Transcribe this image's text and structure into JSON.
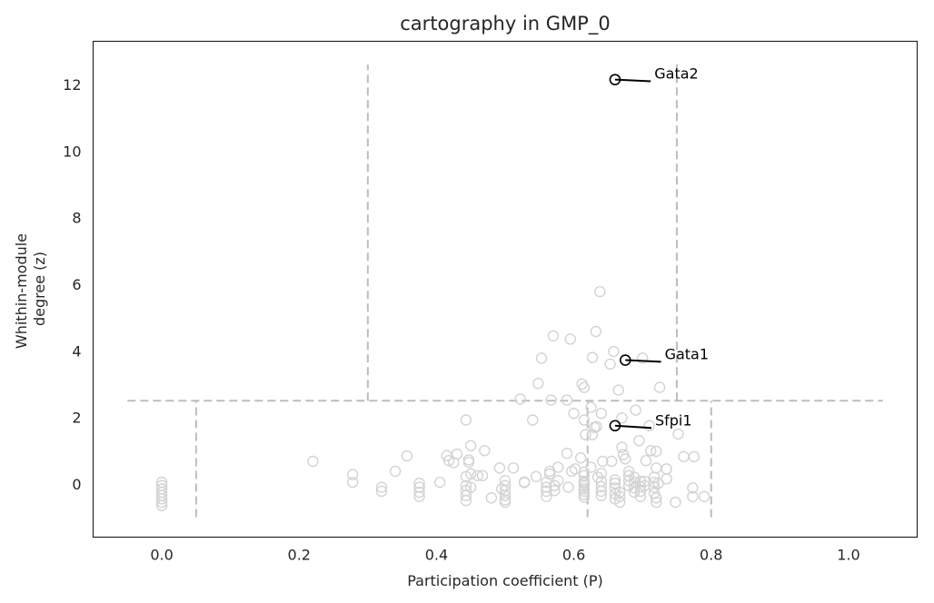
{
  "chart_data": {
    "type": "scatter",
    "title": "cartography in GMP_0",
    "xlabel": "Participation coefficient (P)",
    "ylabel": [
      "Whithin-module",
      "degree (z)"
    ],
    "xlim": [
      -0.1,
      1.1
    ],
    "ylim": [
      -1.6,
      13.3
    ],
    "xticks": [
      0.0,
      0.2,
      0.4,
      0.6,
      0.8,
      1.0
    ],
    "xtick_labels": [
      "0.0",
      "0.2",
      "0.4",
      "0.6",
      "0.8",
      "1.0"
    ],
    "yticks": [
      0,
      2,
      4,
      6,
      8,
      10,
      12
    ],
    "ytick_labels": [
      "0",
      "2",
      "4",
      "6",
      "8",
      "10",
      "12"
    ],
    "grid": false,
    "point_color": "#d3d3d3",
    "highlight_color": "#000000",
    "guide_color": "#bdbdbd",
    "guides": [
      {
        "x": [
          -0.05,
          1.05
        ],
        "y": [
          2.5,
          2.5
        ]
      },
      {
        "x": [
          0.05,
          0.05
        ],
        "y": [
          -1.0,
          2.5
        ]
      },
      {
        "x": [
          0.62,
          0.62
        ],
        "y": [
          -1.0,
          2.5
        ]
      },
      {
        "x": [
          0.8,
          0.8
        ],
        "y": [
          -1.0,
          2.5
        ]
      },
      {
        "x": [
          0.3,
          0.3
        ],
        "y": [
          2.5,
          12.6
        ]
      },
      {
        "x": [
          0.75,
          0.75
        ],
        "y": [
          2.5,
          12.6
        ]
      }
    ],
    "points": [
      [
        0.0,
        0.05
      ],
      [
        0.0,
        -0.05
      ],
      [
        0.0,
        -0.15
      ],
      [
        0.0,
        -0.25
      ],
      [
        0.0,
        -0.35
      ],
      [
        0.0,
        -0.45
      ],
      [
        0.0,
        -0.55
      ],
      [
        0.0,
        -0.65
      ],
      [
        0.22,
        0.68
      ],
      [
        0.278,
        0.28
      ],
      [
        0.278,
        0.05
      ],
      [
        0.32,
        -0.1
      ],
      [
        0.32,
        -0.22
      ],
      [
        0.34,
        0.38
      ],
      [
        0.357,
        0.84
      ],
      [
        0.375,
        0.02
      ],
      [
        0.375,
        -0.1
      ],
      [
        0.375,
        -0.25
      ],
      [
        0.375,
        -0.38
      ],
      [
        0.405,
        0.05
      ],
      [
        0.415,
        0.85
      ],
      [
        0.418,
        0.7
      ],
      [
        0.425,
        0.64
      ],
      [
        0.43,
        0.9
      ],
      [
        0.443,
        1.92
      ],
      [
        0.443,
        0.22
      ],
      [
        0.443,
        -0.05
      ],
      [
        0.443,
        -0.2
      ],
      [
        0.443,
        -0.35
      ],
      [
        0.443,
        -0.5
      ],
      [
        0.447,
        0.72
      ],
      [
        0.447,
        0.65
      ],
      [
        0.45,
        1.15
      ],
      [
        0.45,
        0.3
      ],
      [
        0.45,
        -0.1
      ],
      [
        0.46,
        0.25
      ],
      [
        0.467,
        0.25
      ],
      [
        0.47,
        1.0
      ],
      [
        0.48,
        -0.42
      ],
      [
        0.492,
        0.48
      ],
      [
        0.495,
        -0.15
      ],
      [
        0.5,
        0.1
      ],
      [
        0.5,
        -0.05
      ],
      [
        0.5,
        -0.2
      ],
      [
        0.5,
        -0.35
      ],
      [
        0.5,
        -0.48
      ],
      [
        0.5,
        -0.55
      ],
      [
        0.512,
        0.48
      ],
      [
        0.522,
        2.55
      ],
      [
        0.528,
        0.06
      ],
      [
        0.528,
        0.04
      ],
      [
        0.54,
        1.92
      ],
      [
        0.545,
        0.22
      ],
      [
        0.548,
        3.02
      ],
      [
        0.553,
        3.78
      ],
      [
        0.56,
        0.05
      ],
      [
        0.56,
        -0.1
      ],
      [
        0.56,
        -0.22
      ],
      [
        0.56,
        -0.38
      ],
      [
        0.565,
        0.38
      ],
      [
        0.565,
        0.3
      ],
      [
        0.567,
        2.52
      ],
      [
        0.57,
        4.45
      ],
      [
        0.572,
        -0.05
      ],
      [
        0.572,
        -0.2
      ],
      [
        0.577,
        0.1
      ],
      [
        0.577,
        0.5
      ],
      [
        0.59,
        0.92
      ],
      [
        0.59,
        2.52
      ],
      [
        0.592,
        -0.1
      ],
      [
        0.595,
        4.35
      ],
      [
        0.597,
        0.38
      ],
      [
        0.6,
        2.12
      ],
      [
        0.602,
        0.45
      ],
      [
        0.61,
        0.78
      ],
      [
        0.612,
        3.0
      ],
      [
        0.615,
        2.9
      ],
      [
        0.615,
        1.92
      ],
      [
        0.617,
        1.48
      ],
      [
        0.615,
        0.35
      ],
      [
        0.615,
        0.25
      ],
      [
        0.615,
        0.08
      ],
      [
        0.615,
        0.02
      ],
      [
        0.615,
        -0.06
      ],
      [
        0.615,
        -0.15
      ],
      [
        0.615,
        -0.22
      ],
      [
        0.615,
        -0.32
      ],
      [
        0.615,
        -0.4
      ],
      [
        0.625,
        2.3
      ],
      [
        0.625,
        0.5
      ],
      [
        0.627,
        3.8
      ],
      [
        0.627,
        1.48
      ],
      [
        0.63,
        1.7
      ],
      [
        0.632,
        4.58
      ],
      [
        0.633,
        1.72
      ],
      [
        0.635,
        0.2
      ],
      [
        0.638,
        5.78
      ],
      [
        0.64,
        2.12
      ],
      [
        0.64,
        0.32
      ],
      [
        0.64,
        0.08
      ],
      [
        0.64,
        -0.08
      ],
      [
        0.64,
        -0.22
      ],
      [
        0.64,
        -0.35
      ],
      [
        0.642,
        0.68
      ],
      [
        0.653,
        3.6
      ],
      [
        0.655,
        0.68
      ],
      [
        0.658,
        3.98
      ],
      [
        0.66,
        0.12
      ],
      [
        0.66,
        0.02
      ],
      [
        0.66,
        -0.12
      ],
      [
        0.66,
        -0.3
      ],
      [
        0.66,
        -0.45
      ],
      [
        0.665,
        2.82
      ],
      [
        0.667,
        -0.25
      ],
      [
        0.667,
        -0.38
      ],
      [
        0.667,
        -0.55
      ],
      [
        0.67,
        1.98
      ],
      [
        0.67,
        1.1
      ],
      [
        0.672,
        0.88
      ],
      [
        0.675,
        0.75
      ],
      [
        0.68,
        0.38
      ],
      [
        0.68,
        0.25
      ],
      [
        0.68,
        0.1
      ],
      [
        0.68,
        -0.05
      ],
      [
        0.688,
        0.2
      ],
      [
        0.688,
        0.05
      ],
      [
        0.688,
        -0.12
      ],
      [
        0.688,
        -0.25
      ],
      [
        0.69,
        2.22
      ],
      [
        0.695,
        1.3
      ],
      [
        0.697,
        0.08
      ],
      [
        0.697,
        -0.08
      ],
      [
        0.697,
        -0.22
      ],
      [
        0.697,
        -0.38
      ],
      [
        0.7,
        3.78
      ],
      [
        0.703,
        0.08
      ],
      [
        0.703,
        -0.05
      ],
      [
        0.705,
        0.7
      ],
      [
        0.71,
        1.75
      ],
      [
        0.712,
        1.0
      ],
      [
        0.717,
        0.2
      ],
      [
        0.717,
        0.05
      ],
      [
        0.717,
        -0.1
      ],
      [
        0.717,
        -0.28
      ],
      [
        0.72,
        0.98
      ],
      [
        0.72,
        0.48
      ],
      [
        0.72,
        -0.42
      ],
      [
        0.72,
        -0.55
      ],
      [
        0.723,
        0.02
      ],
      [
        0.725,
        2.9
      ],
      [
        0.735,
        0.15
      ],
      [
        0.735,
        0.45
      ],
      [
        0.748,
        -0.55
      ],
      [
        0.752,
        1.5
      ],
      [
        0.76,
        0.82
      ],
      [
        0.773,
        -0.12
      ],
      [
        0.773,
        -0.38
      ],
      [
        0.775,
        0.82
      ],
      [
        0.79,
        -0.38
      ]
    ],
    "highlighted": [
      {
        "label": "Gata2",
        "x": 0.66,
        "y": 12.15,
        "label_x": 0.712,
        "label_y": 12.1
      },
      {
        "label": "Gata1",
        "x": 0.675,
        "y": 3.72,
        "label_x": 0.727,
        "label_y": 3.67
      },
      {
        "label": "Sfpi1",
        "x": 0.66,
        "y": 1.75,
        "label_x": 0.713,
        "label_y": 1.68
      }
    ]
  }
}
